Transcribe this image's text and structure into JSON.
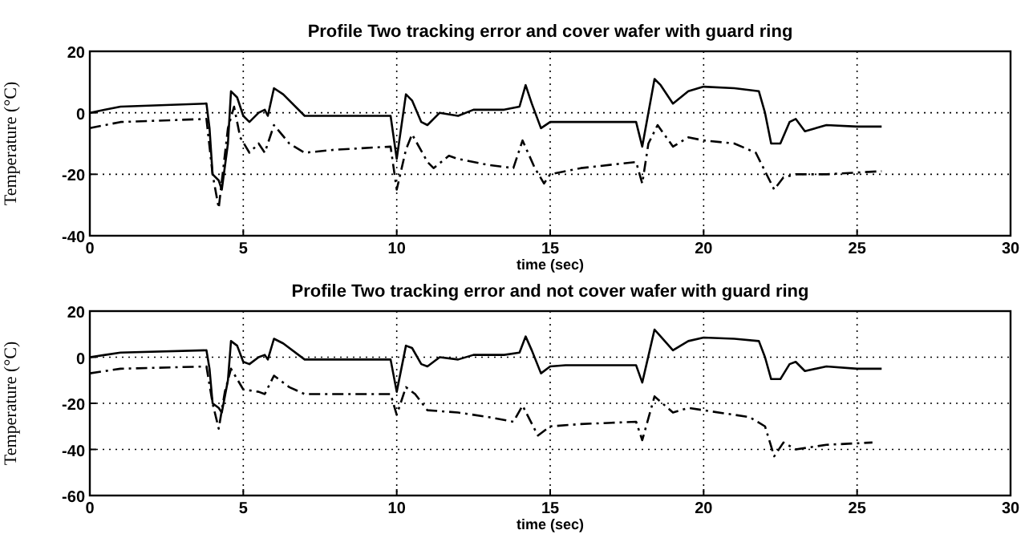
{
  "chart_data": [
    {
      "type": "line",
      "title": "Profile Two tracking error and cover wafer with guard ring",
      "xlabel": "time (sec)",
      "ylabel": "Temperature (°C)",
      "xlim": [
        0,
        30
      ],
      "xticks": [
        0,
        5,
        10,
        15,
        20,
        25,
        30
      ],
      "ylim": [
        -40,
        20
      ],
      "yticks": [
        -40,
        -20,
        0,
        20
      ],
      "grid": true,
      "series": [
        {
          "color": "#000000",
          "line_style": "solid",
          "x": [
            0,
            0.5,
            1,
            3.8,
            3.9,
            4.0,
            4.2,
            4.3,
            4.5,
            4.6,
            4.8,
            5.0,
            5.2,
            5.5,
            5.7,
            5.8,
            6.0,
            6.3,
            7,
            9.8,
            10,
            10.3,
            10.5,
            10.8,
            11.0,
            11.4,
            12,
            12.5,
            13.5,
            14,
            14.2,
            14.4,
            14.7,
            15,
            15.5,
            17.8,
            18,
            18.4,
            18.6,
            19,
            19.5,
            20,
            21,
            21.8,
            22,
            22.2,
            22.5,
            22.8,
            23.0,
            23.3,
            24,
            25,
            25.8
          ],
          "values": [
            0,
            1,
            2,
            3,
            -5,
            -20,
            -22,
            -25,
            -10,
            7,
            5,
            -1,
            -3,
            0,
            1,
            -1,
            8,
            6,
            -1,
            -1,
            -15,
            6,
            4,
            -3,
            -4,
            0,
            -1,
            1,
            1,
            2,
            9,
            3,
            -5,
            -3,
            -3,
            -3,
            -11,
            11,
            9,
            3,
            7,
            8.5,
            8,
            7,
            0,
            -10,
            -10,
            -3,
            -2,
            -6,
            -4,
            -4.5,
            -4.5
          ]
        },
        {
          "color": "#000000",
          "line_style": "dashdot",
          "x": [
            0,
            1,
            3.8,
            4.0,
            4.2,
            4.5,
            4.7,
            4.9,
            5.2,
            5.5,
            5.7,
            6.0,
            6.5,
            7,
            8,
            9.8,
            10,
            10.3,
            10.5,
            11,
            11.2,
            11.7,
            12,
            13,
            13.8,
            14.1,
            14.5,
            14.8,
            15,
            16,
            17.8,
            18,
            18.2,
            18.5,
            19,
            19.5,
            20,
            21,
            21.7,
            22,
            22.3,
            22.6,
            23,
            24,
            25.8
          ],
          "values": [
            -5,
            -3,
            -2,
            -20,
            -31,
            -5,
            2,
            -8,
            -13,
            -10,
            -13,
            -4,
            -10,
            -13,
            -12,
            -11,
            -25,
            -12,
            -7,
            -16,
            -18,
            -14,
            -15,
            -17,
            -18,
            -9,
            -18,
            -23,
            -20,
            -18,
            -16,
            -23,
            -10,
            -4,
            -11,
            -8,
            -9,
            -10,
            -13,
            -19,
            -25,
            -21,
            -20,
            -20,
            -19
          ]
        }
      ]
    },
    {
      "type": "line",
      "title": "Profile Two tracking error and not cover wafer with guard ring",
      "xlabel": "time (sec)",
      "ylabel": "Temperature (°C)",
      "xlim": [
        0,
        30
      ],
      "xticks": [
        0,
        5,
        10,
        15,
        20,
        25,
        30
      ],
      "ylim": [
        -60,
        20
      ],
      "yticks": [
        -60,
        -40,
        -20,
        0,
        20
      ],
      "grid": true,
      "series": [
        {
          "color": "#000000",
          "line_style": "solid",
          "x": [
            0,
            0.5,
            1,
            3.8,
            3.9,
            4.0,
            4.2,
            4.3,
            4.5,
            4.6,
            4.8,
            5.0,
            5.2,
            5.5,
            5.7,
            5.8,
            6.0,
            6.3,
            7,
            9.8,
            10,
            10.3,
            10.5,
            10.8,
            11.0,
            11.4,
            12,
            12.5,
            13.5,
            14,
            14.2,
            14.4,
            14.7,
            15,
            15.5,
            17.8,
            18,
            18.4,
            18.6,
            19,
            19.5,
            20,
            21,
            21.8,
            22,
            22.2,
            22.5,
            22.8,
            23.0,
            23.3,
            24,
            25,
            25.8
          ],
          "values": [
            0,
            1,
            2,
            3,
            -5,
            -20,
            -22,
            -24,
            -10,
            7,
            5,
            -2,
            -3,
            0,
            1,
            -1,
            8,
            6,
            -1,
            -1,
            -15,
            5,
            4,
            -3,
            -4,
            0,
            -1,
            1,
            1,
            2,
            9,
            3,
            -7,
            -4,
            -3.5,
            -3.5,
            -11,
            12,
            9,
            3,
            7,
            8.5,
            8,
            7,
            0,
            -9.5,
            -9.5,
            -3,
            -2,
            -6,
            -4,
            -5,
            -5
          ]
        },
        {
          "color": "#000000",
          "line_style": "dashdot",
          "x": [
            0,
            1,
            3.8,
            4.0,
            4.2,
            4.4,
            4.6,
            5.0,
            5.5,
            5.7,
            6.0,
            6.5,
            7,
            8,
            9.8,
            10,
            10.3,
            10.6,
            11,
            12,
            13,
            13.8,
            14.1,
            14.6,
            15,
            16,
            17.8,
            18,
            18.4,
            19,
            19.5,
            20,
            21.5,
            22,
            22.3,
            22.6,
            23,
            24,
            25.5
          ],
          "values": [
            -7,
            -5,
            -4,
            -20,
            -31,
            -15,
            -5,
            -14,
            -15,
            -16,
            -8,
            -13,
            -16,
            -16,
            -16,
            -25,
            -13,
            -16,
            -23,
            -24,
            -26,
            -28,
            -21,
            -34,
            -30,
            -29,
            -28,
            -36,
            -17,
            -24,
            -22,
            -23,
            -26,
            -30,
            -43,
            -37,
            -40,
            -38,
            -37
          ]
        }
      ]
    }
  ]
}
